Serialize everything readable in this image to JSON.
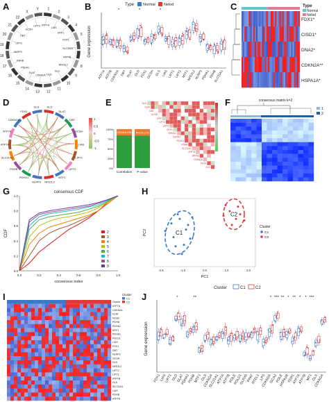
{
  "panels": {
    "A": {
      "letter": "A",
      "chromosomes": [
        "1",
        "2",
        "3",
        "4",
        "5",
        "6",
        "7",
        "8",
        "9",
        "10",
        "11",
        "12",
        "13",
        "14",
        "15",
        "16",
        "17",
        "18",
        "19",
        "20",
        "21",
        "22",
        "X",
        "Y"
      ],
      "genes": [
        "ATP7A",
        "LIAS",
        "MTF1",
        "FDX1",
        "SLC31A1",
        "ATP7B",
        "NFE2L2",
        "GLS",
        "DLD",
        "CDKN2A",
        "DLAT",
        "PDHA1",
        "PDHB",
        "NLRP3",
        "LIPT1",
        "DBT",
        "GCSH",
        "LIPT2"
      ]
    },
    "B": {
      "letter": "B",
      "legend_title": "Type",
      "legend_items": [
        "Normal",
        "Nelod"
      ],
      "ylabel": "Gene expression",
      "genes": [
        "ATP7A",
        "ATP7B",
        "CDKN2A",
        "DBT",
        "DLAT",
        "DLD",
        "FDX1",
        "GCSH",
        "GLS",
        "LIAS",
        "LIPT1",
        "LIPT2",
        "MTF1",
        "NFE2L2",
        "NLRP3",
        "PDHA1",
        "PDHB",
        "SLC31A1"
      ],
      "sig": [
        "",
        "",
        "*",
        "",
        "",
        "*",
        "",
        "",
        "*",
        "",
        "",
        "",
        "",
        "",
        "",
        "",
        "",
        ""
      ]
    },
    "C": {
      "letter": "C",
      "legend_title": "Type",
      "legend_items": [
        "Normal",
        "Nelod"
      ],
      "row_labels": [
        "FDX1*",
        "CISD1*",
        "DNA2*",
        "CDKN2A**",
        "HSPA1A*"
      ]
    },
    "D": {
      "letter": "D",
      "genes": [
        "DLD",
        "DLAT",
        "DBT",
        "GCSH",
        "LIAS",
        "LIPT1",
        "LIPT2",
        "MTF1",
        "NFE2L2",
        "NLRP3",
        "PDHA1",
        "PDHB",
        "SLC31A1",
        "ATP7A",
        "ATP7B",
        "CDKN2A",
        "FDX1",
        "GLS"
      ],
      "scale": [
        "1",
        "0.5",
        "0",
        "-0.5",
        "-1"
      ]
    },
    "E": {
      "letter": "E",
      "legend": [
        "cor",
        "P"
      ],
      "bar_labels": [
        "Correlation",
        "P-value"
      ],
      "bar_values": [
        "CDKN2A 16%",
        "P<0.05 17%"
      ],
      "bar_fill_pct": [
        16,
        17
      ],
      "yticks": [
        "100%",
        "75%",
        "50%",
        "25%",
        "0%"
      ]
    },
    "F": {
      "letter": "F",
      "title": "consensus matrix k=2",
      "legend_items": [
        "1",
        "2"
      ]
    },
    "G": {
      "letter": "G",
      "title": "consensus CDF",
      "ylabel": "CDF",
      "xlabel": "consensus index",
      "legend_items": [
        "2",
        "3",
        "4",
        "5",
        "6",
        "7",
        "8",
        "9"
      ],
      "xticks": [
        "0.0",
        "0.2",
        "0.4",
        "0.6",
        "0.8",
        "1.0"
      ],
      "yticks": [
        "0.0",
        "0.2",
        "0.4",
        "0.6",
        "0.8",
        "1.0"
      ]
    },
    "H": {
      "letter": "H",
      "xlabel": "PC1",
      "ylabel": "PC2",
      "cluster_title": "Cluster",
      "cluster_labels": [
        "C1",
        "C2"
      ],
      "legend_items": [
        "C1",
        "C2"
      ],
      "xticks": [
        "-2.5",
        "-1.0",
        "0.0",
        "1.0",
        "2.0"
      ],
      "bottom_cluster_title": "Cluster",
      "bottom_items": [
        "C1",
        "C2"
      ]
    },
    "I": {
      "letter": "I",
      "legend_title": "Cluster",
      "legend_items": [
        "C1",
        "C2"
      ],
      "row_labels": [
        "Cluster",
        "ATP7A",
        "CDKN2A",
        "DLAT",
        "NCM2",
        "PDHB",
        "PDHA1",
        "MTF1",
        "PDHA1",
        "POLD1",
        "LIAS",
        "FDX1",
        "DBT",
        "NLRP3",
        "GCSH",
        "DLD",
        "NFE2L2",
        "LIPT2",
        "LIPT1",
        "ATP7B",
        "GLS",
        "SLC31A1",
        "LIAS",
        "PDHB",
        "ATP7A"
      ]
    },
    "J": {
      "letter": "J",
      "ylabel": "Gene expression",
      "genes": [
        "FDX1",
        "LIAS",
        "LIPT1",
        "DLD",
        "DLAT",
        "PDHA1",
        "PDHB",
        "MTF1",
        "GLS",
        "CDKN2A",
        "SLC31A1",
        "ATP7A",
        "ATP7B",
        "POLE",
        "POLD1",
        "GLRX5",
        "PPAT",
        "RTEL1",
        "LPS",
        "CDKN2A",
        "ISCA2",
        "POLE",
        "HSPA1B",
        "FDX1",
        "ATP7A",
        "ATP7B",
        "MT1",
        "GLS",
        "CDKN2A"
      ],
      "sig": [
        "",
        "",
        "",
        "*",
        "",
        "",
        "**",
        "",
        "",
        "",
        "",
        "",
        "",
        "",
        "",
        "",
        "",
        "",
        "",
        "*",
        "***",
        "**",
        "*",
        "**",
        "*",
        "*",
        "***",
        "",
        ""
      ]
    }
  },
  "colors": {
    "normal": "#3a78c9",
    "tumor": "#e0383b",
    "green": "#2e9e40",
    "orange": "#f07a33"
  },
  "chart_data": [
    {
      "type": "line",
      "title": "consensus CDF",
      "xlabel": "consensus index",
      "ylabel": "CDF",
      "ylim": [
        0,
        1
      ],
      "xlim": [
        0,
        1
      ],
      "series": [
        {
          "name": "2",
          "values": [
            0.0,
            0.1,
            0.25,
            0.35,
            0.45,
            0.55,
            0.62,
            0.7,
            0.8,
            0.92,
            1.0
          ]
        },
        {
          "name": "3",
          "values": [
            0.0,
            0.2,
            0.4,
            0.5,
            0.56,
            0.6,
            0.66,
            0.72,
            0.8,
            0.9,
            1.0
          ]
        },
        {
          "name": "4",
          "values": [
            0.0,
            0.35,
            0.5,
            0.58,
            0.62,
            0.66,
            0.7,
            0.74,
            0.8,
            0.9,
            1.0
          ]
        },
        {
          "name": "5",
          "values": [
            0.0,
            0.45,
            0.6,
            0.66,
            0.7,
            0.72,
            0.75,
            0.78,
            0.84,
            0.92,
            1.0
          ]
        },
        {
          "name": "6",
          "values": [
            0.0,
            0.55,
            0.68,
            0.72,
            0.74,
            0.76,
            0.78,
            0.82,
            0.86,
            0.93,
            1.0
          ]
        },
        {
          "name": "7",
          "values": [
            0.0,
            0.6,
            0.72,
            0.76,
            0.78,
            0.8,
            0.82,
            0.85,
            0.88,
            0.94,
            1.0
          ]
        },
        {
          "name": "8",
          "values": [
            0.0,
            0.65,
            0.75,
            0.78,
            0.8,
            0.82,
            0.84,
            0.86,
            0.9,
            0.95,
            1.0
          ]
        },
        {
          "name": "9",
          "values": [
            0.0,
            0.68,
            0.77,
            0.8,
            0.82,
            0.84,
            0.86,
            0.88,
            0.91,
            0.95,
            1.0
          ]
        }
      ]
    },
    {
      "type": "scatter",
      "xlabel": "PC1",
      "ylabel": "PC2",
      "series": [
        {
          "name": "C1",
          "points": [
            [
              -1.6,
              0.6
            ],
            [
              -1.2,
              0.9
            ],
            [
              -0.9,
              0.2
            ],
            [
              -1.5,
              -0.3
            ],
            [
              -1.0,
              -0.8
            ],
            [
              -1.3,
              1.2
            ],
            [
              -0.7,
              -0.4
            ],
            [
              -1.9,
              0.1
            ],
            [
              -1.1,
              -1.4
            ],
            [
              -0.8,
              0.5
            ],
            [
              -1.4,
              -0.9
            ],
            [
              -0.6,
              1.0
            ]
          ]
        },
        {
          "name": "C2",
          "points": [
            [
              1.2,
              1.4
            ],
            [
              1.5,
              0.9
            ],
            [
              1.0,
              1.8
            ],
            [
              1.7,
              1.2
            ],
            [
              1.3,
              0.5
            ],
            [
              0.9,
              1.1
            ],
            [
              1.6,
              1.7
            ],
            [
              1.9,
              0.8
            ]
          ]
        }
      ]
    },
    {
      "type": "bar",
      "categories": [
        "Correlation",
        "P-value"
      ],
      "series": [
        {
          "name": "green",
          "values": [
            84,
            83
          ]
        },
        {
          "name": "orange",
          "values": [
            16,
            17
          ]
        }
      ],
      "ylim": [
        0,
        100
      ]
    }
  ]
}
